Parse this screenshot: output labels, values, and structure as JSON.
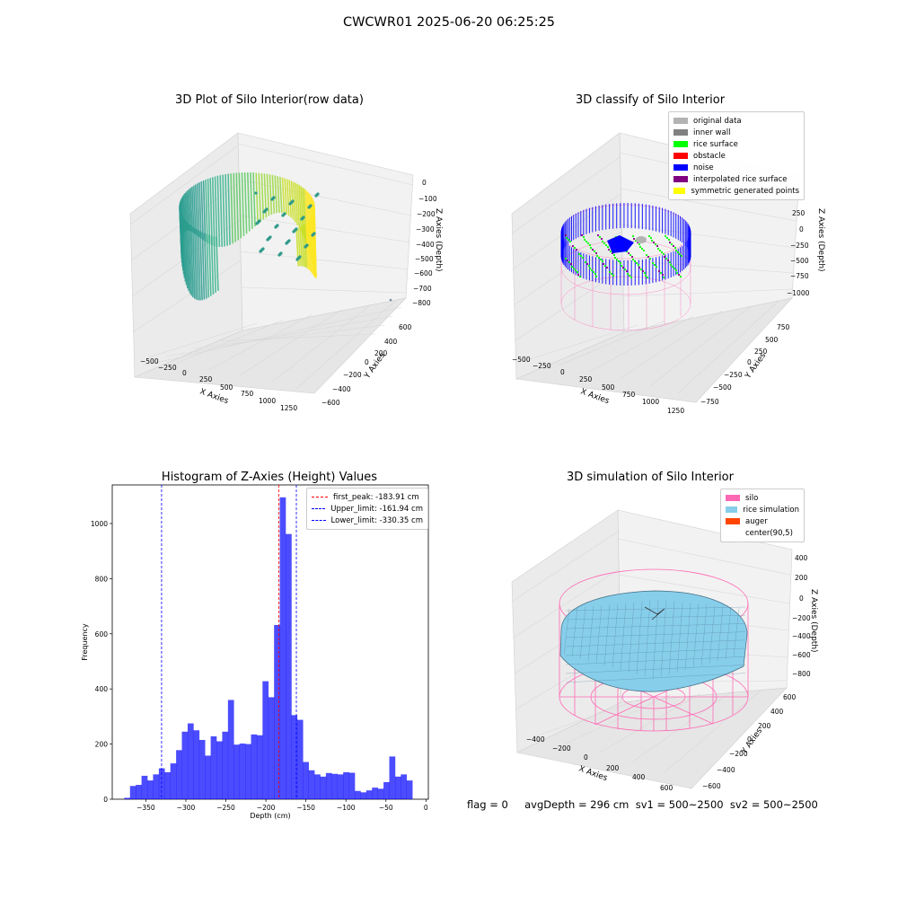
{
  "suptitle": "CWCWR01 2025-06-20 06:25:25",
  "panel1": {
    "title": "3D Plot of Silo Interior(row data)",
    "xlabel": "X Axies",
    "ylabel": "Y Axies",
    "zlabel": "Z Axies (Depth)",
    "xticks": [
      "−500",
      "−250",
      "0",
      "250",
      "500",
      "750",
      "1000",
      "1250"
    ],
    "yticks": [
      "600",
      "400",
      "200",
      "0",
      "−200",
      "−400",
      "−600"
    ],
    "zticks": [
      "0",
      "−100",
      "−200",
      "−300",
      "−400",
      "−500",
      "−600",
      "−700",
      "−800"
    ]
  },
  "panel2": {
    "title": "3D classify of Silo Interior",
    "xlabel": "X Axies",
    "ylabel": "Y Axies",
    "zlabel": "Z Axies (Depth)",
    "xticks": [
      "−500",
      "−250",
      "0",
      "250",
      "500",
      "750",
      "1000",
      "1250"
    ],
    "yticks": [
      "750",
      "500",
      "250",
      "0",
      "−250",
      "−500",
      "−750"
    ],
    "zticks": [
      "250",
      "0",
      "−250",
      "−500",
      "−750",
      "−1000"
    ],
    "legend": [
      {
        "label": "original data",
        "color": "#b3b3b3"
      },
      {
        "label": "inner wall",
        "color": "#808080"
      },
      {
        "label": "rice surface",
        "color": "#00ff00"
      },
      {
        "label": "obstacle",
        "color": "#ff0000"
      },
      {
        "label": "noise",
        "color": "#0000ff"
      },
      {
        "label": "interpolated rice surface",
        "color": "#800080"
      },
      {
        "label": "symmetric generated points",
        "color": "#ffff00"
      }
    ]
  },
  "panel3": {
    "title": "Histogram of Z-Axies (Height) Values",
    "xlabel": "Depth (cm)",
    "ylabel": "Frequency",
    "xticks": [
      "−350",
      "−300",
      "−250",
      "−200",
      "−150",
      "−100",
      "−50",
      "0"
    ],
    "yticks": [
      "0",
      "200",
      "400",
      "600",
      "800",
      "1000"
    ],
    "legend": [
      {
        "label": "first_peak: -183.91 cm",
        "color": "#ff0000"
      },
      {
        "label": "Upper_limit: -161.94 cm",
        "color": "#0000ff"
      },
      {
        "label": "Lower_limit: -330.35 cm",
        "color": "#0000ff"
      }
    ]
  },
  "panel4": {
    "title": "3D simulation of Silo Interior",
    "xlabel": "X Axies",
    "ylabel": "Y Axies",
    "zlabel": "Z Axies (Depth)",
    "xticks": [
      "−400",
      "−200",
      "0",
      "200",
      "400",
      "600"
    ],
    "yticks": [
      "600",
      "400",
      "200",
      "0",
      "−200",
      "−400",
      "−600"
    ],
    "zticks": [
      "400",
      "200",
      "0",
      "−200",
      "−400",
      "−600",
      "−800"
    ],
    "legend": [
      {
        "label": "silo",
        "color": "#ff69b4"
      },
      {
        "label": "rice simulation",
        "color": "#87ceeb"
      },
      {
        "label": "auger",
        "color": "#ff4500"
      },
      {
        "label": "center(90,5)",
        "color": "#ffffff"
      }
    ]
  },
  "footer": "flag = 0     avgDepth = 296 cm  sv1 = 500~2500  sv2 = 500~2500",
  "chart_data": {
    "type": "bar",
    "title": "Histogram of Z-Axies (Height) Values",
    "xlabel": "Depth (cm)",
    "ylabel": "Frequency",
    "xlim": [
      -392,
      3
    ],
    "ylim": [
      0,
      1140
    ],
    "bin_start": -377,
    "bin_width": 7.2,
    "values": [
      5,
      48,
      52,
      85,
      68,
      90,
      112,
      98,
      130,
      178,
      245,
      275,
      250,
      215,
      158,
      228,
      210,
      245,
      360,
      198,
      202,
      200,
      235,
      232,
      428,
      370,
      632,
      1095,
      962,
      305,
      288,
      135,
      105,
      90,
      82,
      95,
      92,
      90,
      98,
      96,
      30,
      25,
      32,
      42,
      38,
      62,
      155,
      82,
      90,
      68
    ],
    "bar_color": "#0000ff",
    "vlines": [
      {
        "name": "first_peak",
        "x": -183.91,
        "color": "#ff0000"
      },
      {
        "name": "Upper_limit",
        "x": -161.94,
        "color": "#0000ff"
      },
      {
        "name": "Lower_limit",
        "x": -330.35,
        "color": "#0000ff"
      }
    ],
    "legend_position": "top-right"
  }
}
